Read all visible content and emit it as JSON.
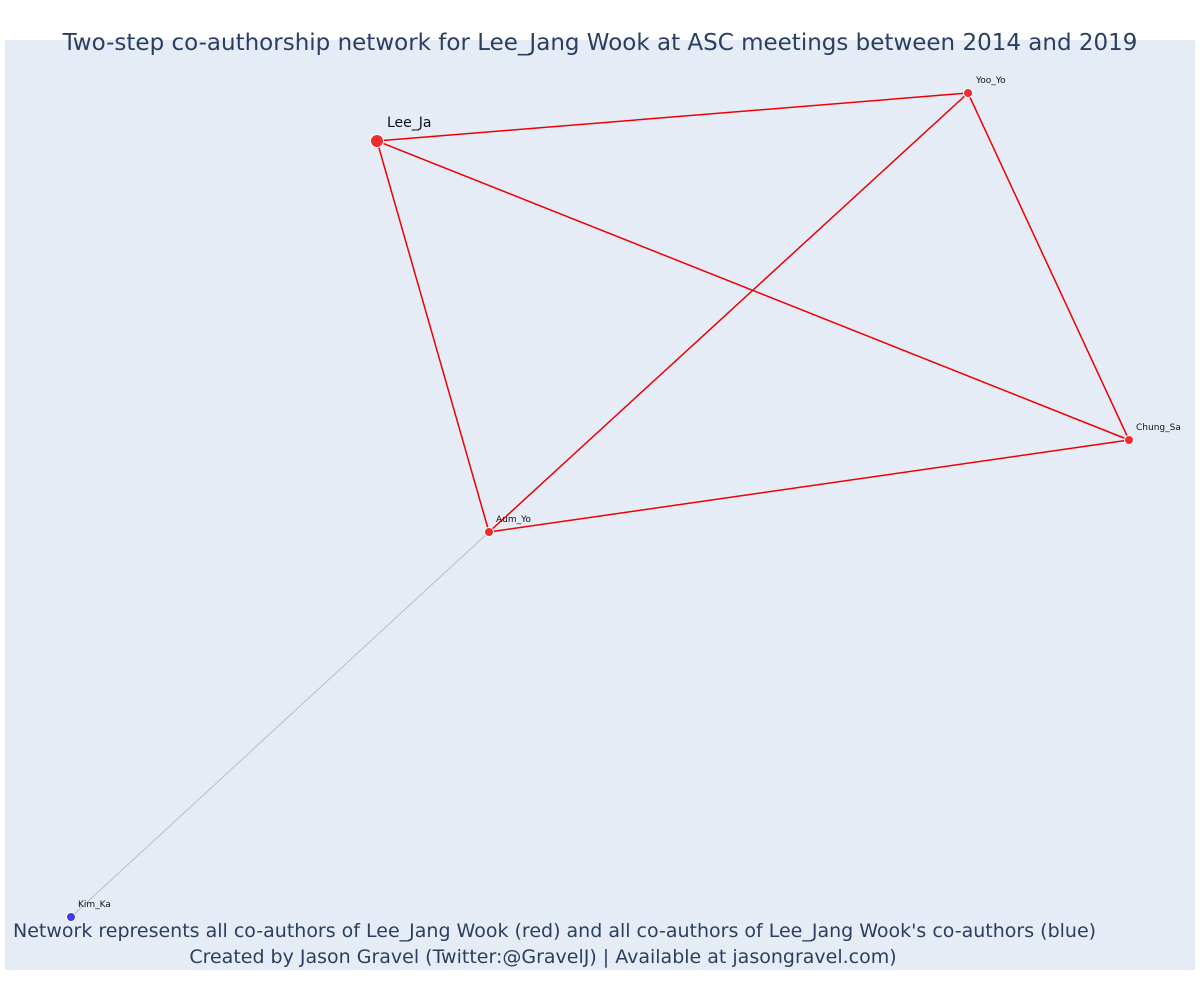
{
  "title": "Two-step co-authorship network for Lee_Jang Wook at ASC meetings between 2014 and 2019",
  "caption": {
    "line1": "Network represents all co-authors of Lee_Jang Wook (red) and all co-authors of Lee_Jang Wook's co-authors (blue)",
    "line2": "Created by Jason Gravel (Twitter:@GravelJ) | Available at jasongravel.com)"
  },
  "colors": {
    "background": "#e5ecf6",
    "first_degree": "#ef2b2b",
    "second_degree": "#3b3bf0",
    "edge_first": "#ee0000",
    "edge_second": "#b8bccc",
    "title_text": "#2a3f5f"
  },
  "chart_data": {
    "type": "network",
    "nodes": [
      {
        "id": "Lee_Ja",
        "label": "Lee_Ja",
        "group": "focal"
      },
      {
        "id": "Yoo_Yo",
        "label": "Yoo_Yo",
        "group": "co-author"
      },
      {
        "id": "Chung_Sa",
        "label": "Chung_Sa",
        "group": "co-author"
      },
      {
        "id": "Aum_Yo",
        "label": "Aum_Yo",
        "group": "co-author"
      },
      {
        "id": "Kim_Ka",
        "label": "Kim_Ka",
        "group": "co-author-of-co-author"
      }
    ],
    "edges": [
      {
        "source": "Lee_Ja",
        "target": "Yoo_Yo",
        "type": "first"
      },
      {
        "source": "Lee_Ja",
        "target": "Chung_Sa",
        "type": "first"
      },
      {
        "source": "Lee_Ja",
        "target": "Aum_Yo",
        "type": "first"
      },
      {
        "source": "Yoo_Yo",
        "target": "Aum_Yo",
        "type": "first"
      },
      {
        "source": "Yoo_Yo",
        "target": "Chung_Sa",
        "type": "first"
      },
      {
        "source": "Aum_Yo",
        "target": "Chung_Sa",
        "type": "first"
      },
      {
        "source": "Aum_Yo",
        "target": "Kim_Ka",
        "type": "second"
      }
    ]
  }
}
